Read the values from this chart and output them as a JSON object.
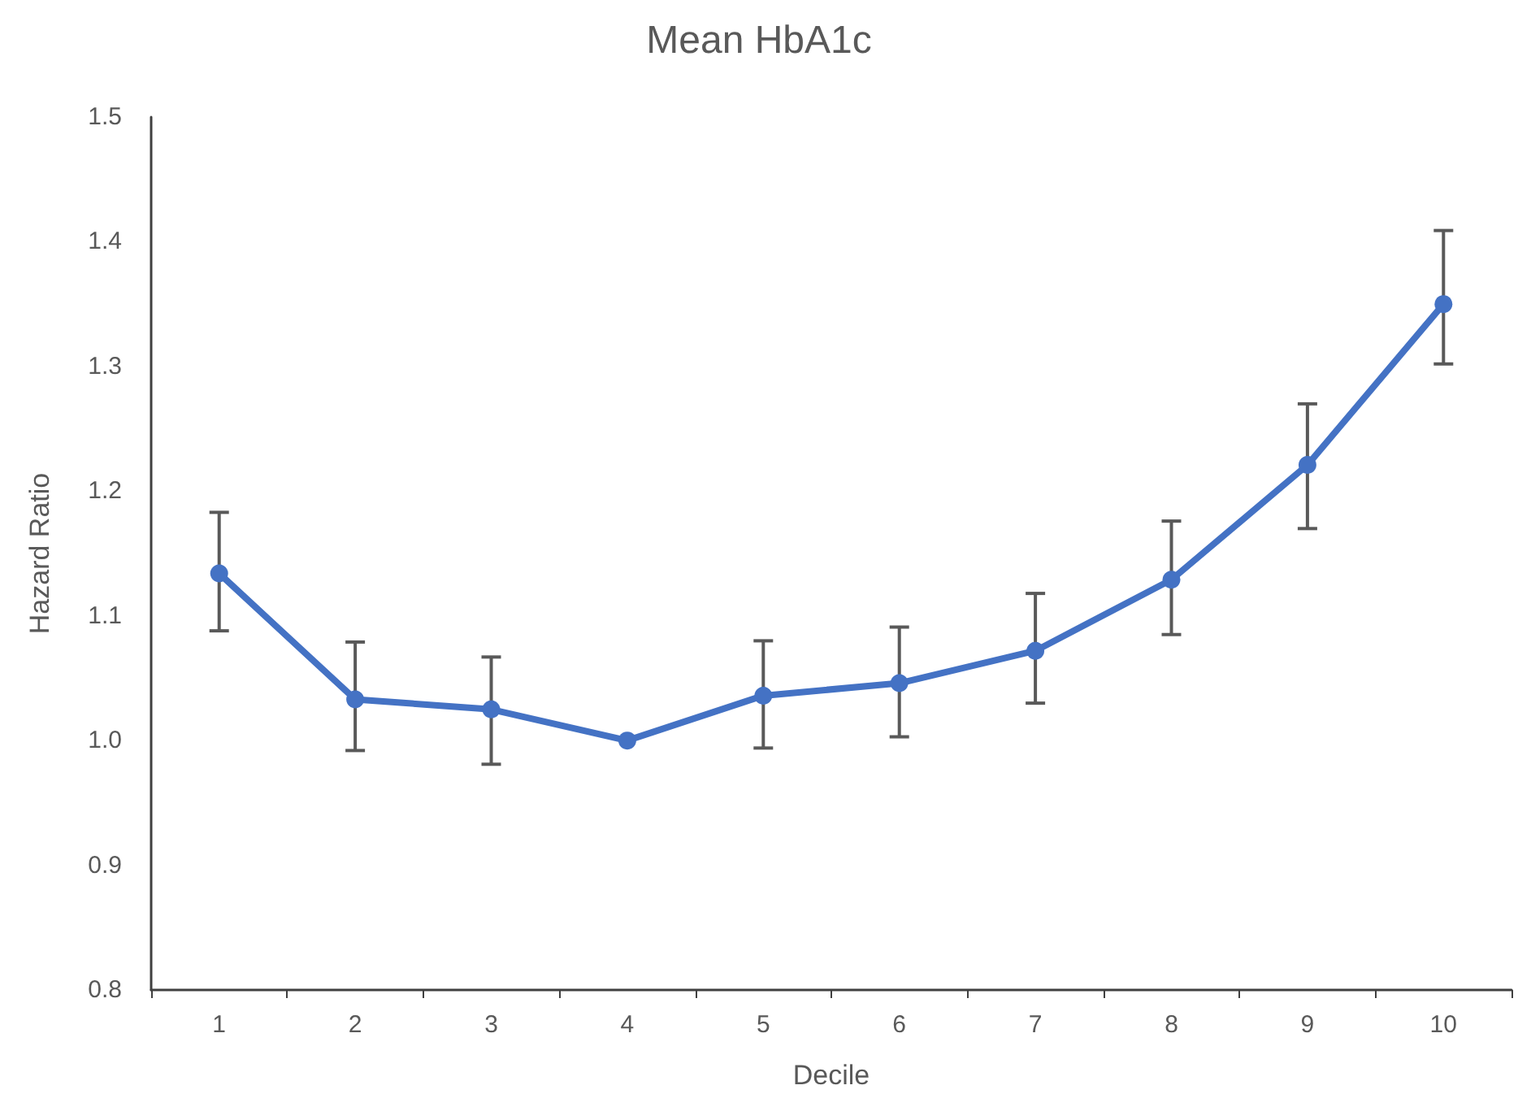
{
  "chart_data": {
    "type": "line",
    "title": "Mean HbA1c",
    "xlabel": "Decile",
    "ylabel": "Hazard Ratio",
    "categories": [
      "1",
      "2",
      "3",
      "4",
      "5",
      "6",
      "7",
      "8",
      "9",
      "10"
    ],
    "series": [
      {
        "color": "#4472c4",
        "values": [
          1.134,
          1.033,
          1.025,
          1.0,
          1.036,
          1.046,
          1.072,
          1.129,
          1.221,
          1.35
        ],
        "errors": [
          [
            1.088,
            1.183
          ],
          [
            0.992,
            1.079
          ],
          [
            0.981,
            1.067
          ],
          null,
          [
            0.994,
            1.08
          ],
          [
            1.003,
            1.091
          ],
          [
            1.03,
            1.118
          ],
          [
            1.085,
            1.176
          ],
          [
            1.17,
            1.27
          ],
          [
            1.302,
            1.409
          ]
        ]
      }
    ],
    "ylim": [
      0.8,
      1.5
    ],
    "yticks": [
      {
        "value": 0.8,
        "label": "0.8"
      },
      {
        "value": 0.9,
        "label": "0.9"
      },
      {
        "value": 1.0,
        "label": "1.0"
      },
      {
        "value": 1.1,
        "label": "1.1"
      },
      {
        "value": 1.2,
        "label": "1.2"
      },
      {
        "value": 1.3,
        "label": "1.3"
      },
      {
        "value": 1.4,
        "label": "1.4"
      },
      {
        "value": 1.5,
        "label": "1.5"
      }
    ],
    "grid": false,
    "marker": "circle",
    "line_style": "solid"
  }
}
